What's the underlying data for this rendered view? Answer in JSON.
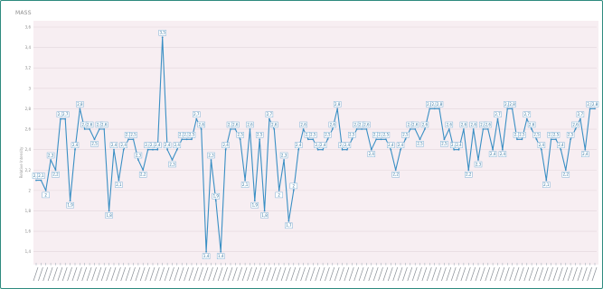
{
  "chart_data": {
    "type": "line",
    "title": "MASS",
    "xlabel": "",
    "ylabel": "Relative Intensity",
    "ylim": [
      1.3,
      3.6
    ],
    "y_ticks": [
      "1,4",
      "1,6",
      "1,8",
      "2",
      "2,2",
      "2,4",
      "2,6",
      "2,8",
      "3",
      "3,2",
      "3,4",
      "3,6"
    ],
    "grid": "horizontal",
    "legend": "none",
    "line_color": "#3a8fc4",
    "plot_background": "#f7eef2",
    "series": [
      {
        "values": [
          2.1,
          2.1,
          2.0,
          2.3,
          2.2,
          2.7,
          2.7,
          1.9,
          2.4,
          2.8,
          2.6,
          2.6,
          2.5,
          2.6,
          2.6,
          1.8,
          2.4,
          2.1,
          2.4,
          2.5,
          2.5,
          2.3,
          2.2,
          2.4,
          2.4,
          2.4,
          3.5,
          2.4,
          2.3,
          2.4,
          2.5,
          2.5,
          2.5,
          2.7,
          2.6,
          1.4,
          2.3,
          1.9,
          1.4,
          2.4,
          2.6,
          2.6,
          2.5,
          2.1,
          2.6,
          1.9,
          2.5,
          1.8,
          2.7,
          2.6,
          2.0,
          2.3,
          1.7,
          2.0,
          2.4,
          2.6,
          2.5,
          2.5,
          2.4,
          2.4,
          2.5,
          2.6,
          2.8,
          2.4,
          2.4,
          2.5,
          2.6,
          2.6,
          2.6,
          2.4,
          2.5,
          2.5,
          2.5,
          2.4,
          2.2,
          2.4,
          2.5,
          2.6,
          2.6,
          2.5,
          2.6,
          2.8,
          2.8,
          2.8,
          2.5,
          2.6,
          2.4,
          2.4,
          2.6,
          2.2,
          2.6,
          2.3,
          2.6,
          2.6,
          2.4,
          2.7,
          2.4,
          2.8,
          2.8,
          2.5,
          2.5,
          2.7,
          2.6,
          2.5,
          2.4,
          2.1,
          2.5,
          2.5,
          2.4,
          2.2,
          2.5,
          2.6,
          2.7,
          2.4,
          2.8,
          2.8
        ],
        "data_labels": [
          "2,1",
          "2,1",
          "2",
          "2,3",
          "2,2",
          "2,7",
          "2,7",
          "1,9",
          "2,4",
          "2,8",
          "2,6",
          "2,6",
          "2,5",
          "2,6",
          "2,6",
          "1,8",
          "2,4",
          "2,1",
          "2,4",
          "2,5",
          "2,5",
          "2,3",
          "2,2",
          "2,4",
          "2,4",
          "2,4",
          "3,5",
          "2,4",
          "2,3",
          "2,4",
          "2,5",
          "2,5",
          "2,5",
          "2,7",
          "2,6",
          "1,4",
          "2,3",
          "1,9",
          "1,4",
          "2,4",
          "2,6",
          "2,6",
          "2,5",
          "2,1",
          "2,6",
          "1,9",
          "2,5",
          "1,8",
          "2,7",
          "2,6",
          "2",
          "2,3",
          "1,7",
          "2",
          "2,4",
          "2,6",
          "2,5",
          "2,5",
          "2,4",
          "2,4",
          "2,5",
          "2,6",
          "2,8",
          "2,4",
          "2,4",
          "2,5",
          "2,6",
          "2,6",
          "2,6",
          "2,4",
          "2,5",
          "2,5",
          "2,5",
          "2,4",
          "2,2",
          "2,4",
          "2,5",
          "2,6",
          "2,6",
          "2,5",
          "2,6",
          "2,8",
          "2,8",
          "2,8",
          "2,5",
          "2,6",
          "2,4",
          "2,4",
          "2,6",
          "2,2",
          "2,6",
          "2,3",
          "2,6",
          "2,6",
          "2,4",
          "2,7",
          "2,4",
          "2,8",
          "2,8",
          "2,5",
          "2,5",
          "2,7",
          "2,6",
          "2,5",
          "2,4",
          "2,1",
          "2,5",
          "2,5",
          "2,4",
          "2,2",
          "2,5",
          "2,6",
          "2,7",
          "2,4",
          "2,8",
          "2,8"
        ]
      }
    ]
  }
}
